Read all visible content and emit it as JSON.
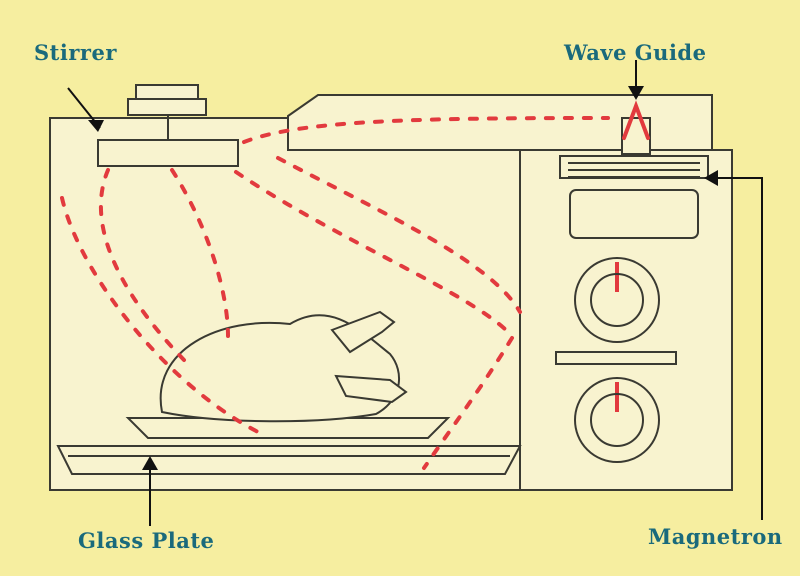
{
  "labels": {
    "stirrer": "Stirrer",
    "wave_guide": "Wave Guide",
    "glass_plate": "Glass Plate",
    "magnetron": "Magnetron"
  },
  "colors": {
    "background": "#f6eea0",
    "label_text": "#1a6a7c",
    "microwave": "#e23a3e",
    "outline": "#3a3a32",
    "appliance_fill": "#f8f3cf"
  },
  "icons": [
    "stirrer-icon",
    "wave-guide-icon",
    "magnetron-icon",
    "turkey-icon",
    "dial-icon",
    "arrow-icon"
  ]
}
